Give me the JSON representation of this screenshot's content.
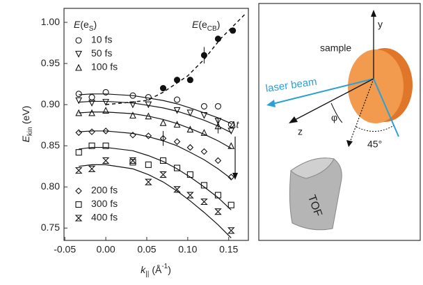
{
  "chart_data": {
    "type": "scatter",
    "xlim": [
      -0.051,
      0.174
    ],
    "ylim": [
      0.735,
      1.017
    ],
    "xticks": [
      -0.05,
      {
        "value": 0,
        "label": "0.00"
      },
      0.05,
      {
        "value": 0.1,
        "label": "0.10"
      },
      0.15
    ],
    "yticks": [
      0.75,
      {
        "value": 0.8,
        "label": "0.80"
      },
      0.85,
      {
        "value": 0.9,
        "label": "0.90"
      },
      0.95,
      {
        "value": 1,
        "label": "1.00"
      }
    ],
    "y_label": {
      "symbol": "E",
      "subscript": "kin",
      "unit": "(eV)"
    },
    "x_label": {
      "symbol": "k",
      "subscript": "||",
      "unit": "(Å",
      "power": "-1",
      "close": ")"
    },
    "legend_title": {
      "symbol": "E",
      "open": "(e",
      "subscript": "S",
      "close": ")"
    },
    "x": [
      -0.033,
      -0.017,
      0.0,
      0.033,
      0.052,
      0.07,
      0.087,
      0.103,
      0.12,
      0.137,
      0.153
    ],
    "series": [
      {
        "name": "10 fs",
        "marker": "circle",
        "values": [
          0.913,
          0.909,
          0.915,
          0.911,
          0.909,
          null,
          0.906,
          null,
          0.898,
          0.898,
          0.876
        ],
        "fit": [
          0.912,
          0.913,
          0.913,
          0.911,
          0.908,
          0.905,
          0.901,
          0.896,
          0.89,
          0.884,
          0.877
        ]
      },
      {
        "name": "50 fs",
        "marker": "triangle-down",
        "values": [
          0.905,
          0.902,
          0.903,
          0.9,
          0.9,
          null,
          0.893,
          0.89,
          0.887,
          0.88,
          0.868
        ],
        "fit": [
          0.903,
          0.904,
          0.904,
          0.902,
          0.899,
          0.896,
          0.892,
          0.887,
          0.881,
          0.874,
          0.866
        ]
      },
      {
        "name": "100 fs",
        "marker": "triangle-up",
        "values": [
          0.89,
          0.89,
          0.893,
          0.887,
          0.886,
          0.878,
          0.876,
          0.87,
          0.866,
          0.874,
          0.85
        ],
        "fit": [
          0.89,
          0.891,
          0.891,
          0.889,
          0.886,
          0.882,
          0.877,
          0.871,
          0.864,
          0.856,
          0.847
        ],
        "errors": [
          null,
          null,
          null,
          null,
          null,
          null,
          null,
          null,
          null,
          0.009,
          null
        ]
      },
      {
        "name": "200 fs",
        "marker": "diamond",
        "values": [
          0.866,
          0.867,
          0.868,
          0.863,
          0.862,
          0.859,
          0.855,
          0.848,
          0.843,
          0.832,
          0.812
        ],
        "fit": [
          0.867,
          0.868,
          0.868,
          0.865,
          0.861,
          0.856,
          0.85,
          0.842,
          0.833,
          0.822,
          0.81
        ],
        "errors": [
          null,
          null,
          null,
          null,
          null,
          0.009,
          null,
          null,
          null,
          null,
          null
        ]
      },
      {
        "name": "300 fs",
        "marker": "square",
        "values": [
          0.842,
          0.85,
          0.85,
          0.83,
          0.827,
          0.832,
          0.823,
          0.815,
          0.802,
          0.79,
          0.778
        ],
        "fit": [
          0.846,
          0.848,
          0.848,
          0.844,
          0.838,
          0.831,
          0.822,
          0.812,
          0.8,
          0.787,
          0.772
        ]
      },
      {
        "name": "400 fs",
        "marker": "hourglass",
        "values": [
          0.82,
          0.822,
          0.832,
          0.832,
          0.806,
          0.815,
          0.797,
          0.79,
          0.782,
          0.77,
          0.747
        ],
        "fit": [
          0.825,
          0.827,
          0.827,
          0.822,
          0.815,
          0.806,
          0.795,
          0.783,
          0.769,
          0.754,
          0.738
        ]
      }
    ],
    "cb": {
      "label": {
        "symbol": "E",
        "open": "(e",
        "subscript": "CB",
        "close": ")"
      },
      "x": [
        0.07,
        0.087,
        0.103,
        0.12,
        0.137,
        0.155
      ],
      "values": [
        0.92,
        0.93,
        0.93,
        0.96,
        0.98,
        0.99
      ],
      "errors": [
        null,
        null,
        null,
        0.01,
        null,
        null
      ],
      "trend_x": [
        0.0,
        0.05,
        0.07,
        0.1,
        0.12,
        0.14,
        0.17
      ],
      "trend": [
        0.9,
        0.905,
        0.915,
        0.935,
        0.955,
        0.98,
        1.01
      ]
    },
    "annotation": "Δt"
  },
  "diagram": {
    "y_axis": "y",
    "sample": "sample",
    "laser": "laser beam",
    "z_axis": "z",
    "phi": "φ",
    "angle": "45°",
    "detector": "TOF"
  }
}
